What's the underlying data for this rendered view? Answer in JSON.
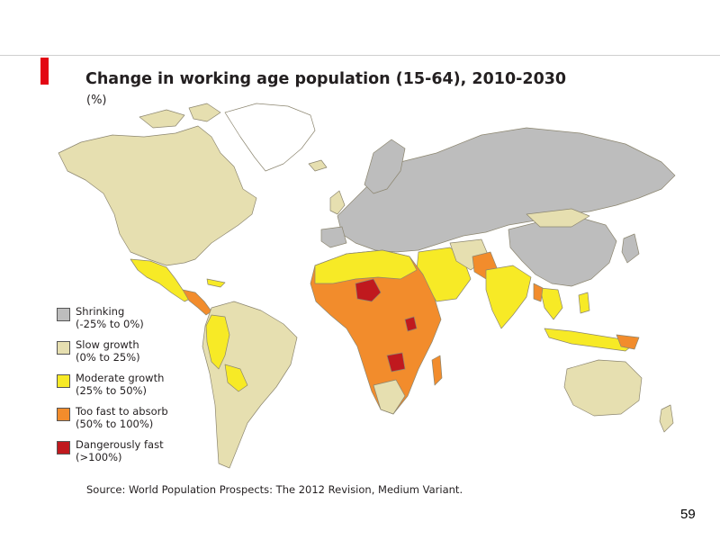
{
  "title": "Change in working age population (15-64), 2010-2030",
  "unit": "(%)",
  "colors": {
    "shrinking": "#bdbdbd",
    "slow": "#e6dfb0",
    "moderate": "#f7ea26",
    "fast": "#f28c2c",
    "danger": "#c0191e",
    "accent": "#e30613"
  },
  "legend": [
    {
      "label": "Shrinking",
      "range": "(-25% to 0%)",
      "color": "#bdbdbd"
    },
    {
      "label": "Slow growth",
      "range": "(0% to 25%)",
      "color": "#e6dfb0"
    },
    {
      "label": "Moderate growth",
      "range": "(25% to 50%)",
      "color": "#f7ea26"
    },
    {
      "label": "Too fast to absorb",
      "range": "(50% to 100%)",
      "color": "#f28c2c"
    },
    {
      "label": "Dangerously fast",
      "range": "(>100%)",
      "color": "#c0191e"
    }
  ],
  "source": "Source: World Population Prospects: The 2012 Revision, Medium Variant.",
  "page_number": "59"
}
